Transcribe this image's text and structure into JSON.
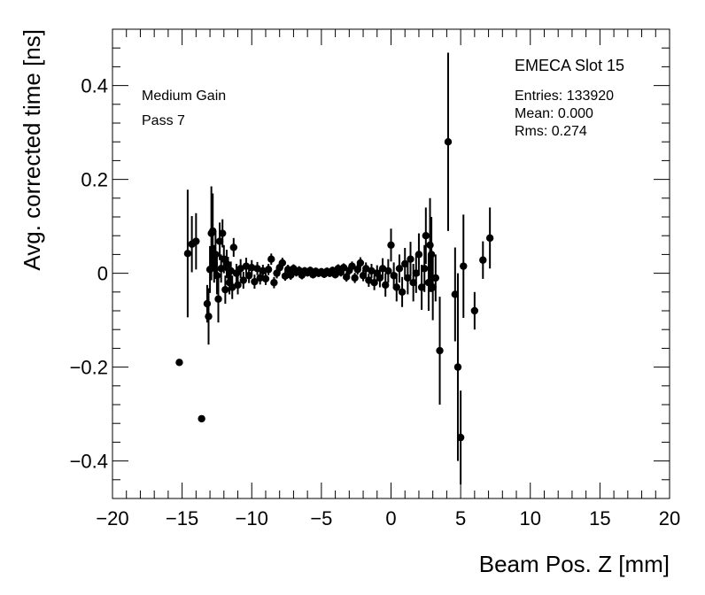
{
  "chart_data": {
    "type": "scatter",
    "title": "",
    "xlabel": "Beam Pos. Z [mm]",
    "ylabel": "Avg. corrected time [ns]",
    "xlim": [
      -20,
      20
    ],
    "ylim": [
      -0.48,
      0.52
    ],
    "xticks": [
      -20,
      -15,
      -10,
      -5,
      0,
      5,
      10,
      15,
      20
    ],
    "yticks": [
      -0.4,
      -0.2,
      0,
      0.2,
      0.4
    ],
    "xtick_labels": [
      "−20",
      "−15",
      "−10",
      "−5",
      "0",
      "5",
      "10",
      "15",
      "20"
    ],
    "ytick_labels": [
      "−0.4",
      "−0.2",
      "0",
      "0.2",
      "0.4"
    ],
    "grid": false,
    "annotations": {
      "left_line1": "Medium Gain",
      "left_line2": "Pass 7",
      "stats_title": "EMECA Slot 15",
      "stats_entries": "Entries: 133920",
      "stats_mean": "Mean: 0.000",
      "stats_rms": "Rms: 0.274"
    },
    "series": [
      {
        "points": [
          {
            "x": -15.2,
            "y": -0.19,
            "err": 0
          },
          {
            "x": -14.6,
            "y": 0.042,
            "err": 0.136
          },
          {
            "x": -14.3,
            "y": 0.062,
            "err": 0.06
          },
          {
            "x": -14.0,
            "y": 0.068,
            "err": 0.06
          },
          {
            "x": -13.6,
            "y": -0.31,
            "err": 0
          },
          {
            "x": -13.2,
            "y": -0.065,
            "err": 0.04
          },
          {
            "x": -13.1,
            "y": -0.092,
            "err": 0.06
          },
          {
            "x": -13.0,
            "y": 0.008,
            "err": 0.05
          },
          {
            "x": -12.9,
            "y": 0.085,
            "err": 0.1
          },
          {
            "x": -12.8,
            "y": 0.09,
            "err": 0.08
          },
          {
            "x": -12.7,
            "y": 0.02,
            "err": 0.04
          },
          {
            "x": -12.6,
            "y": 0.04,
            "err": 0.05
          },
          {
            "x": -12.5,
            "y": -0.005,
            "err": 0.04
          },
          {
            "x": -12.4,
            "y": -0.055,
            "err": 0.05
          },
          {
            "x": -12.3,
            "y": 0.068,
            "err": 0.04
          },
          {
            "x": -12.2,
            "y": 0.01,
            "err": 0.03
          },
          {
            "x": -12.1,
            "y": 0.085,
            "err": 0.03
          },
          {
            "x": -12.0,
            "y": 0.03,
            "err": 0.03
          },
          {
            "x": -11.9,
            "y": -0.035,
            "err": 0.03
          },
          {
            "x": -11.8,
            "y": 0.02,
            "err": 0.03
          },
          {
            "x": -11.7,
            "y": 0.01,
            "err": 0.025
          },
          {
            "x": -11.6,
            "y": -0.02,
            "err": 0.025
          },
          {
            "x": -11.5,
            "y": 0.005,
            "err": 0.02
          },
          {
            "x": -11.4,
            "y": -0.03,
            "err": 0.025
          },
          {
            "x": -11.3,
            "y": 0.055,
            "err": 0.02
          },
          {
            "x": -11.1,
            "y": 0.0,
            "err": 0.02
          },
          {
            "x": -11.0,
            "y": -0.025,
            "err": 0.02
          },
          {
            "x": -10.8,
            "y": 0.01,
            "err": 0.02
          },
          {
            "x": -10.6,
            "y": -0.015,
            "err": 0.018
          },
          {
            "x": -10.4,
            "y": 0.015,
            "err": 0.018
          },
          {
            "x": -10.2,
            "y": -0.005,
            "err": 0.016
          },
          {
            "x": -10.0,
            "y": 0.012,
            "err": 0.016
          },
          {
            "x": -9.8,
            "y": -0.018,
            "err": 0.015
          },
          {
            "x": -9.6,
            "y": 0.01,
            "err": 0.014
          },
          {
            "x": -9.4,
            "y": -0.01,
            "err": 0.014
          },
          {
            "x": -9.2,
            "y": 0.005,
            "err": 0.013
          },
          {
            "x": -9.0,
            "y": -0.012,
            "err": 0.013
          },
          {
            "x": -8.8,
            "y": 0.008,
            "err": 0.012
          },
          {
            "x": -8.6,
            "y": 0.03,
            "err": 0.012
          },
          {
            "x": -8.4,
            "y": -0.02,
            "err": 0.012
          },
          {
            "x": -8.2,
            "y": 0.0,
            "err": 0.011
          },
          {
            "x": -8.0,
            "y": 0.012,
            "err": 0.011
          },
          {
            "x": -7.8,
            "y": 0.022,
            "err": 0.011
          },
          {
            "x": -7.6,
            "y": -0.006,
            "err": 0.01
          },
          {
            "x": -7.4,
            "y": 0.008,
            "err": 0.01
          },
          {
            "x": -7.2,
            "y": -0.004,
            "err": 0.01
          },
          {
            "x": -7.0,
            "y": 0.01,
            "err": 0.009
          },
          {
            "x": -6.8,
            "y": 0.002,
            "err": 0.009
          },
          {
            "x": -6.6,
            "y": 0.006,
            "err": 0.009
          },
          {
            "x": -6.4,
            "y": -0.004,
            "err": 0.009
          },
          {
            "x": -6.2,
            "y": 0.005,
            "err": 0.008
          },
          {
            "x": -6.0,
            "y": 0.001,
            "err": 0.008
          },
          {
            "x": -5.8,
            "y": 0.006,
            "err": 0.008
          },
          {
            "x": -5.6,
            "y": -0.003,
            "err": 0.008
          },
          {
            "x": -5.4,
            "y": 0.004,
            "err": 0.008
          },
          {
            "x": -5.2,
            "y": 0.0,
            "err": 0.008
          },
          {
            "x": -5.0,
            "y": 0.003,
            "err": 0.008
          },
          {
            "x": -4.8,
            "y": -0.002,
            "err": 0.008
          },
          {
            "x": -4.6,
            "y": 0.004,
            "err": 0.008
          },
          {
            "x": -4.4,
            "y": 0.0,
            "err": 0.008
          },
          {
            "x": -4.2,
            "y": 0.006,
            "err": 0.008
          },
          {
            "x": -4.0,
            "y": -0.003,
            "err": 0.008
          },
          {
            "x": -3.8,
            "y": 0.01,
            "err": 0.009
          },
          {
            "x": -3.6,
            "y": 0.002,
            "err": 0.009
          },
          {
            "x": -3.4,
            "y": 0.012,
            "err": 0.009
          },
          {
            "x": -3.2,
            "y": -0.008,
            "err": 0.01
          },
          {
            "x": -3.0,
            "y": 0.006,
            "err": 0.01
          },
          {
            "x": -2.8,
            "y": 0.015,
            "err": 0.01
          },
          {
            "x": -2.6,
            "y": -0.01,
            "err": 0.011
          },
          {
            "x": -2.4,
            "y": 0.008,
            "err": 0.011
          },
          {
            "x": -2.2,
            "y": 0.022,
            "err": 0.012
          },
          {
            "x": -2.0,
            "y": -0.005,
            "err": 0.012
          },
          {
            "x": -1.8,
            "y": 0.01,
            "err": 0.013
          },
          {
            "x": -1.6,
            "y": -0.015,
            "err": 0.014
          },
          {
            "x": -1.4,
            "y": 0.005,
            "err": 0.015
          },
          {
            "x": -1.2,
            "y": -0.02,
            "err": 0.016
          },
          {
            "x": -1.0,
            "y": 0.0,
            "err": 0.017
          },
          {
            "x": -0.8,
            "y": -0.01,
            "err": 0.02
          },
          {
            "x": -0.6,
            "y": 0.01,
            "err": 0.022
          },
          {
            "x": -0.4,
            "y": -0.025,
            "err": 0.025
          },
          {
            "x": -0.2,
            "y": 0.005,
            "err": 0.025
          },
          {
            "x": 0.0,
            "y": 0.06,
            "err": 0.035
          },
          {
            "x": 0.2,
            "y": -0.005,
            "err": 0.028
          },
          {
            "x": 0.4,
            "y": -0.03,
            "err": 0.03
          },
          {
            "x": 0.6,
            "y": 0.01,
            "err": 0.03
          },
          {
            "x": 0.8,
            "y": -0.04,
            "err": 0.032
          },
          {
            "x": 1.0,
            "y": 0.02,
            "err": 0.034
          },
          {
            "x": 1.2,
            "y": -0.01,
            "err": 0.035
          },
          {
            "x": 1.4,
            "y": 0.03,
            "err": 0.037
          },
          {
            "x": 1.6,
            "y": -0.02,
            "err": 0.04
          },
          {
            "x": 1.8,
            "y": 0.0,
            "err": 0.042
          },
          {
            "x": 2.0,
            "y": 0.04,
            "err": 0.045
          },
          {
            "x": 2.2,
            "y": -0.03,
            "err": 0.048
          },
          {
            "x": 2.4,
            "y": 0.01,
            "err": 0.05
          },
          {
            "x": 2.5,
            "y": 0.08,
            "err": 0.06
          },
          {
            "x": 2.7,
            "y": -0.02,
            "err": 0.06
          },
          {
            "x": 2.8,
            "y": 0.06,
            "err": 0.1
          },
          {
            "x": 2.9,
            "y": 0.04,
            "err": 0.08
          },
          {
            "x": 3.0,
            "y": -0.03,
            "err": 0.07
          },
          {
            "x": 3.2,
            "y": -0.01,
            "err": 0.05
          },
          {
            "x": 3.5,
            "y": -0.165,
            "err": 0.115
          },
          {
            "x": 4.1,
            "y": 0.28,
            "err": 0.19
          },
          {
            "x": 4.6,
            "y": -0.045,
            "err": 0.1
          },
          {
            "x": 4.8,
            "y": -0.2,
            "err": 0.2
          },
          {
            "x": 5.0,
            "y": -0.35,
            "err": 0.1
          },
          {
            "x": 5.2,
            "y": 0.015,
            "err": 0.11
          },
          {
            "x": 6.0,
            "y": -0.08,
            "err": 0.04
          },
          {
            "x": 6.6,
            "y": 0.028,
            "err": 0.04
          },
          {
            "x": 7.1,
            "y": 0.075,
            "err": 0.065
          }
        ]
      }
    ]
  }
}
